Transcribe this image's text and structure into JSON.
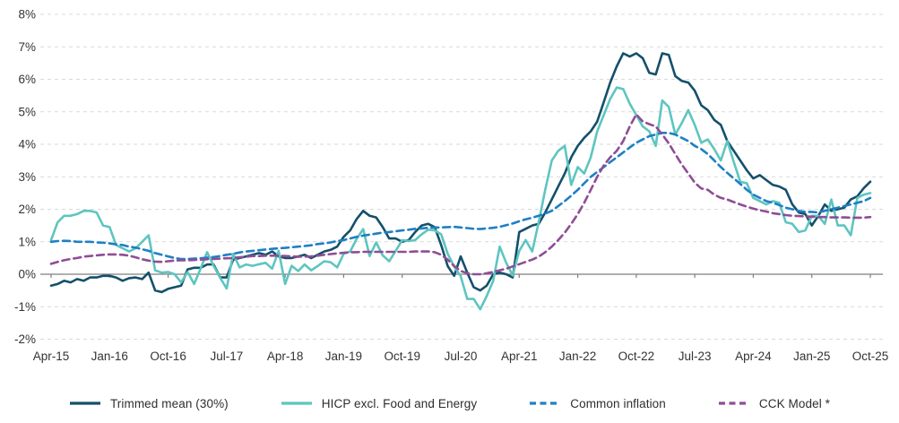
{
  "chart_data": {
    "type": "line",
    "title": "",
    "y_unit": "%",
    "ylim": [
      -2,
      8
    ],
    "grid": "horizontal-dashed",
    "legend_position": "bottom",
    "frequency": "monthly",
    "x_start_label": "Apr-15",
    "x_end_label": "Oct-25",
    "x_tick_labels": [
      "Apr-15",
      "Jan-16",
      "Oct-16",
      "Jul-17",
      "Apr-18",
      "Jan-19",
      "Oct-19",
      "Jul-20",
      "Apr-21",
      "Jan-22",
      "Oct-22",
      "Jul-23",
      "Apr-24",
      "Jan-25",
      "Oct-25"
    ],
    "x_tick_every_n_points": 9,
    "y_tick_labels": [
      "8%",
      "7%",
      "6%",
      "5%",
      "4%",
      "3%",
      "2%",
      "1%",
      "0%",
      "-1%",
      "-2%"
    ],
    "y_tick_values": [
      8,
      7,
      6,
      5,
      4,
      3,
      2,
      1,
      0,
      -1,
      -2
    ],
    "series": [
      {
        "name": "Trimmed mean (30%)",
        "color": "#14506a",
        "style": "solid",
        "values": [
          -0.35,
          -0.3,
          -0.2,
          -0.25,
          -0.15,
          -0.2,
          -0.1,
          -0.1,
          -0.05,
          -0.05,
          -0.1,
          -0.2,
          -0.12,
          -0.1,
          -0.15,
          0.05,
          -0.5,
          -0.55,
          -0.45,
          -0.4,
          -0.35,
          0.15,
          0.2,
          0.2,
          0.3,
          0.3,
          -0.1,
          -0.1,
          0.45,
          0.5,
          0.55,
          0.6,
          0.65,
          0.6,
          0.7,
          0.55,
          0.5,
          0.5,
          0.55,
          0.6,
          0.5,
          0.6,
          0.7,
          0.75,
          0.85,
          1.15,
          1.35,
          1.7,
          1.95,
          1.8,
          1.75,
          1.45,
          1.1,
          1.1,
          1.0,
          1.05,
          1.3,
          1.5,
          1.55,
          1.45,
          0.9,
          0.25,
          -0.05,
          0.55,
          0.05,
          -0.4,
          -0.5,
          -0.35,
          0.0,
          0.05,
          0.0,
          -0.1,
          1.3,
          1.4,
          1.5,
          1.55,
          1.9,
          2.3,
          2.7,
          3.1,
          3.6,
          3.95,
          4.2,
          4.4,
          4.7,
          5.3,
          5.9,
          6.4,
          6.8,
          6.7,
          6.8,
          6.65,
          6.2,
          6.15,
          6.8,
          6.75,
          6.1,
          5.95,
          5.9,
          5.65,
          5.2,
          5.05,
          4.75,
          4.6,
          4.1,
          3.8,
          3.5,
          3.2,
          2.95,
          3.05,
          2.9,
          2.75,
          2.7,
          2.6,
          2.15,
          1.9,
          1.85,
          1.5,
          1.8,
          2.15,
          1.95,
          2.0,
          2.05,
          2.3,
          2.4,
          2.65,
          2.85
        ]
      },
      {
        "name": "HICP excl. Food and Energy",
        "color": "#5ec5c0",
        "style": "solid",
        "values": [
          1.05,
          1.6,
          1.8,
          1.8,
          1.85,
          1.95,
          1.95,
          1.9,
          1.5,
          1.45,
          0.9,
          0.8,
          0.7,
          0.8,
          1.0,
          1.2,
          0.12,
          0.05,
          0.07,
          0.0,
          -0.25,
          0.07,
          -0.3,
          0.17,
          0.68,
          0.26,
          -0.11,
          -0.44,
          0.63,
          0.21,
          0.3,
          0.26,
          0.31,
          0.35,
          0.17,
          0.72,
          -0.3,
          0.26,
          0.1,
          0.3,
          0.12,
          0.25,
          0.4,
          0.37,
          0.21,
          0.63,
          0.7,
          1.09,
          1.39,
          0.56,
          0.98,
          0.58,
          0.4,
          0.72,
          1.05,
          1.02,
          1.05,
          1.23,
          1.37,
          1.35,
          1.23,
          0.63,
          0.24,
          -0.06,
          -0.76,
          -0.76,
          -1.08,
          -0.67,
          -0.2,
          0.85,
          0.35,
          -0.04,
          0.72,
          1.05,
          0.7,
          1.6,
          2.6,
          3.5,
          3.8,
          3.95,
          2.75,
          3.3,
          3.1,
          3.6,
          4.4,
          4.9,
          5.4,
          5.75,
          5.7,
          5.25,
          4.9,
          4.55,
          4.4,
          3.95,
          5.35,
          5.15,
          4.3,
          4.65,
          5.05,
          4.6,
          4.05,
          4.15,
          3.85,
          3.5,
          4.1,
          3.45,
          2.85,
          2.8,
          2.35,
          2.25,
          2.15,
          2.25,
          2.2,
          1.6,
          1.55,
          1.3,
          1.35,
          1.8,
          1.8,
          1.55,
          2.3,
          1.5,
          1.5,
          1.2,
          2.35,
          2.45,
          2.5
        ]
      },
      {
        "name": "Common inflation",
        "color": "#1e80c4",
        "style": "dashed",
        "values": [
          1.0,
          1.02,
          1.03,
          1.02,
          1.0,
          1.0,
          1.0,
          0.98,
          0.97,
          0.95,
          0.92,
          0.9,
          0.85,
          0.82,
          0.77,
          0.72,
          0.65,
          0.6,
          0.55,
          0.5,
          0.47,
          0.47,
          0.48,
          0.49,
          0.51,
          0.53,
          0.56,
          0.6,
          0.63,
          0.67,
          0.7,
          0.72,
          0.74,
          0.76,
          0.78,
          0.8,
          0.81,
          0.83,
          0.85,
          0.87,
          0.89,
          0.93,
          0.95,
          0.98,
          1.02,
          1.05,
          1.1,
          1.15,
          1.19,
          1.22,
          1.25,
          1.28,
          1.3,
          1.32,
          1.35,
          1.37,
          1.4,
          1.41,
          1.43,
          1.44,
          1.44,
          1.45,
          1.46,
          1.44,
          1.42,
          1.4,
          1.39,
          1.41,
          1.43,
          1.46,
          1.51,
          1.56,
          1.63,
          1.69,
          1.74,
          1.8,
          1.87,
          1.95,
          2.1,
          2.25,
          2.42,
          2.6,
          2.8,
          3.0,
          3.15,
          3.3,
          3.45,
          3.6,
          3.75,
          3.9,
          4.05,
          4.15,
          4.25,
          4.3,
          4.35,
          4.35,
          4.3,
          4.2,
          4.1,
          3.95,
          3.85,
          3.7,
          3.5,
          3.3,
          3.12,
          2.95,
          2.78,
          2.6,
          2.45,
          2.35,
          2.25,
          2.2,
          2.13,
          2.05,
          2.0,
          1.95,
          1.92,
          1.92,
          1.9,
          1.95,
          2.0,
          2.05,
          2.1,
          2.15,
          2.2,
          2.25,
          2.35
        ]
      },
      {
        "name": "CCK Model *",
        "color": "#8f4d96",
        "style": "dashed",
        "values": [
          0.32,
          0.38,
          0.43,
          0.47,
          0.5,
          0.54,
          0.56,
          0.58,
          0.6,
          0.61,
          0.61,
          0.6,
          0.57,
          0.52,
          0.46,
          0.42,
          0.39,
          0.38,
          0.4,
          0.42,
          0.43,
          0.43,
          0.44,
          0.45,
          0.46,
          0.47,
          0.48,
          0.49,
          0.5,
          0.52,
          0.54,
          0.56,
          0.56,
          0.57,
          0.57,
          0.57,
          0.56,
          0.55,
          0.54,
          0.54,
          0.55,
          0.57,
          0.6,
          0.62,
          0.64,
          0.66,
          0.68,
          0.68,
          0.69,
          0.69,
          0.69,
          0.69,
          0.69,
          0.69,
          0.69,
          0.69,
          0.7,
          0.7,
          0.7,
          0.68,
          0.6,
          0.45,
          0.25,
          0.1,
          0.03,
          0.0,
          0.0,
          0.03,
          0.07,
          0.12,
          0.17,
          0.24,
          0.31,
          0.38,
          0.45,
          0.54,
          0.68,
          0.85,
          1.05,
          1.28,
          1.55,
          1.85,
          2.2,
          2.6,
          3.0,
          3.35,
          3.6,
          3.8,
          4.1,
          4.55,
          4.92,
          4.7,
          4.62,
          4.55,
          4.3,
          4.03,
          3.7,
          3.38,
          3.1,
          2.82,
          2.64,
          2.6,
          2.45,
          2.35,
          2.3,
          2.22,
          2.15,
          2.08,
          2.02,
          1.97,
          1.93,
          1.88,
          1.85,
          1.82,
          1.8,
          1.79,
          1.78,
          1.77,
          1.76,
          1.76,
          1.75,
          1.75,
          1.75,
          1.74,
          1.74,
          1.74,
          1.76
        ]
      }
    ]
  },
  "style": {
    "grid_color": "#d9d9d9",
    "zero_axis_color": "#7f7f7f",
    "tick_label_color": "#333333",
    "background": "#ffffff"
  }
}
